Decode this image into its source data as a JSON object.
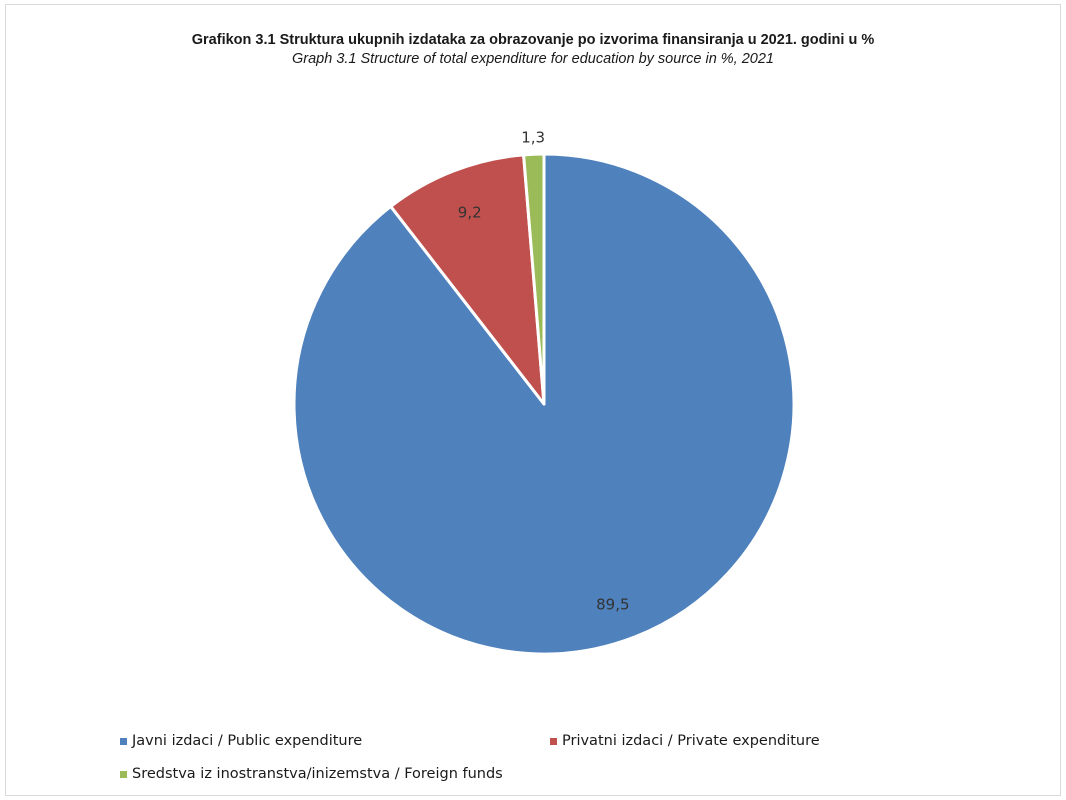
{
  "chart_data": {
    "type": "pie",
    "title": "Grafikon 3.1 Struktura ukupnih izdataka za obrazovanje po izvorima finansiranja u 2021. godini u %",
    "subtitle": "Graph 3.1 Structure of total expenditure for education  by source in %, 2021",
    "slices": [
      {
        "label": "Javni izdaci / Public expenditure",
        "value": 89.5,
        "display": "89,5",
        "color": "#4F81BD"
      },
      {
        "label": "Privatni izdaci / Private expenditure",
        "value": 9.2,
        "display": "9,2",
        "color": "#C0504D"
      },
      {
        "label": "Sredstva iz inostranstva/inizemstva / Foreign funds",
        "value": 1.3,
        "display": "1,3",
        "color": "#9BBB59"
      }
    ],
    "start_angle_deg": 0,
    "direction": "clockwise",
    "legend_position": "bottom"
  }
}
